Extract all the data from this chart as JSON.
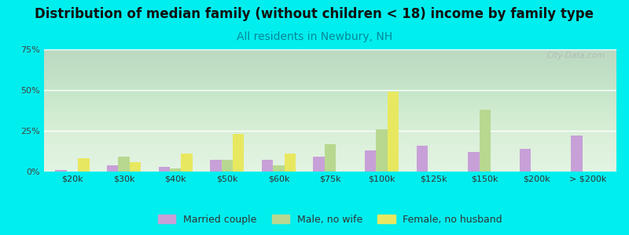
{
  "title": "Distribution of median family (without children < 18) income by family type",
  "subtitle": "All residents in Newbury, NH",
  "categories": [
    "$20k",
    "$30k",
    "$40k",
    "$50k",
    "$60k",
    "$75k",
    "$100k",
    "$125k",
    "$150k",
    "$200k",
    "> $200k"
  ],
  "married_couple": [
    1,
    4,
    3,
    7,
    7,
    9,
    13,
    16,
    12,
    14,
    22
  ],
  "male_no_wife": [
    0,
    9,
    2,
    7,
    4,
    17,
    26,
    0,
    38,
    0,
    0
  ],
  "female_no_husband": [
    8,
    6,
    11,
    23,
    11,
    0,
    49,
    0,
    0,
    0,
    0
  ],
  "married_color": "#c8a0d8",
  "male_color": "#b8d890",
  "female_color": "#e8e860",
  "ylim": [
    0,
    75
  ],
  "yticks": [
    0,
    25,
    50,
    75
  ],
  "ytick_labels": [
    "0%",
    "25%",
    "50%",
    "75%"
  ],
  "bg_outer": "#00eeee",
  "title_fontsize": 12,
  "subtitle_fontsize": 10,
  "subtitle_color": "#008899",
  "watermark": "City-Data.com"
}
